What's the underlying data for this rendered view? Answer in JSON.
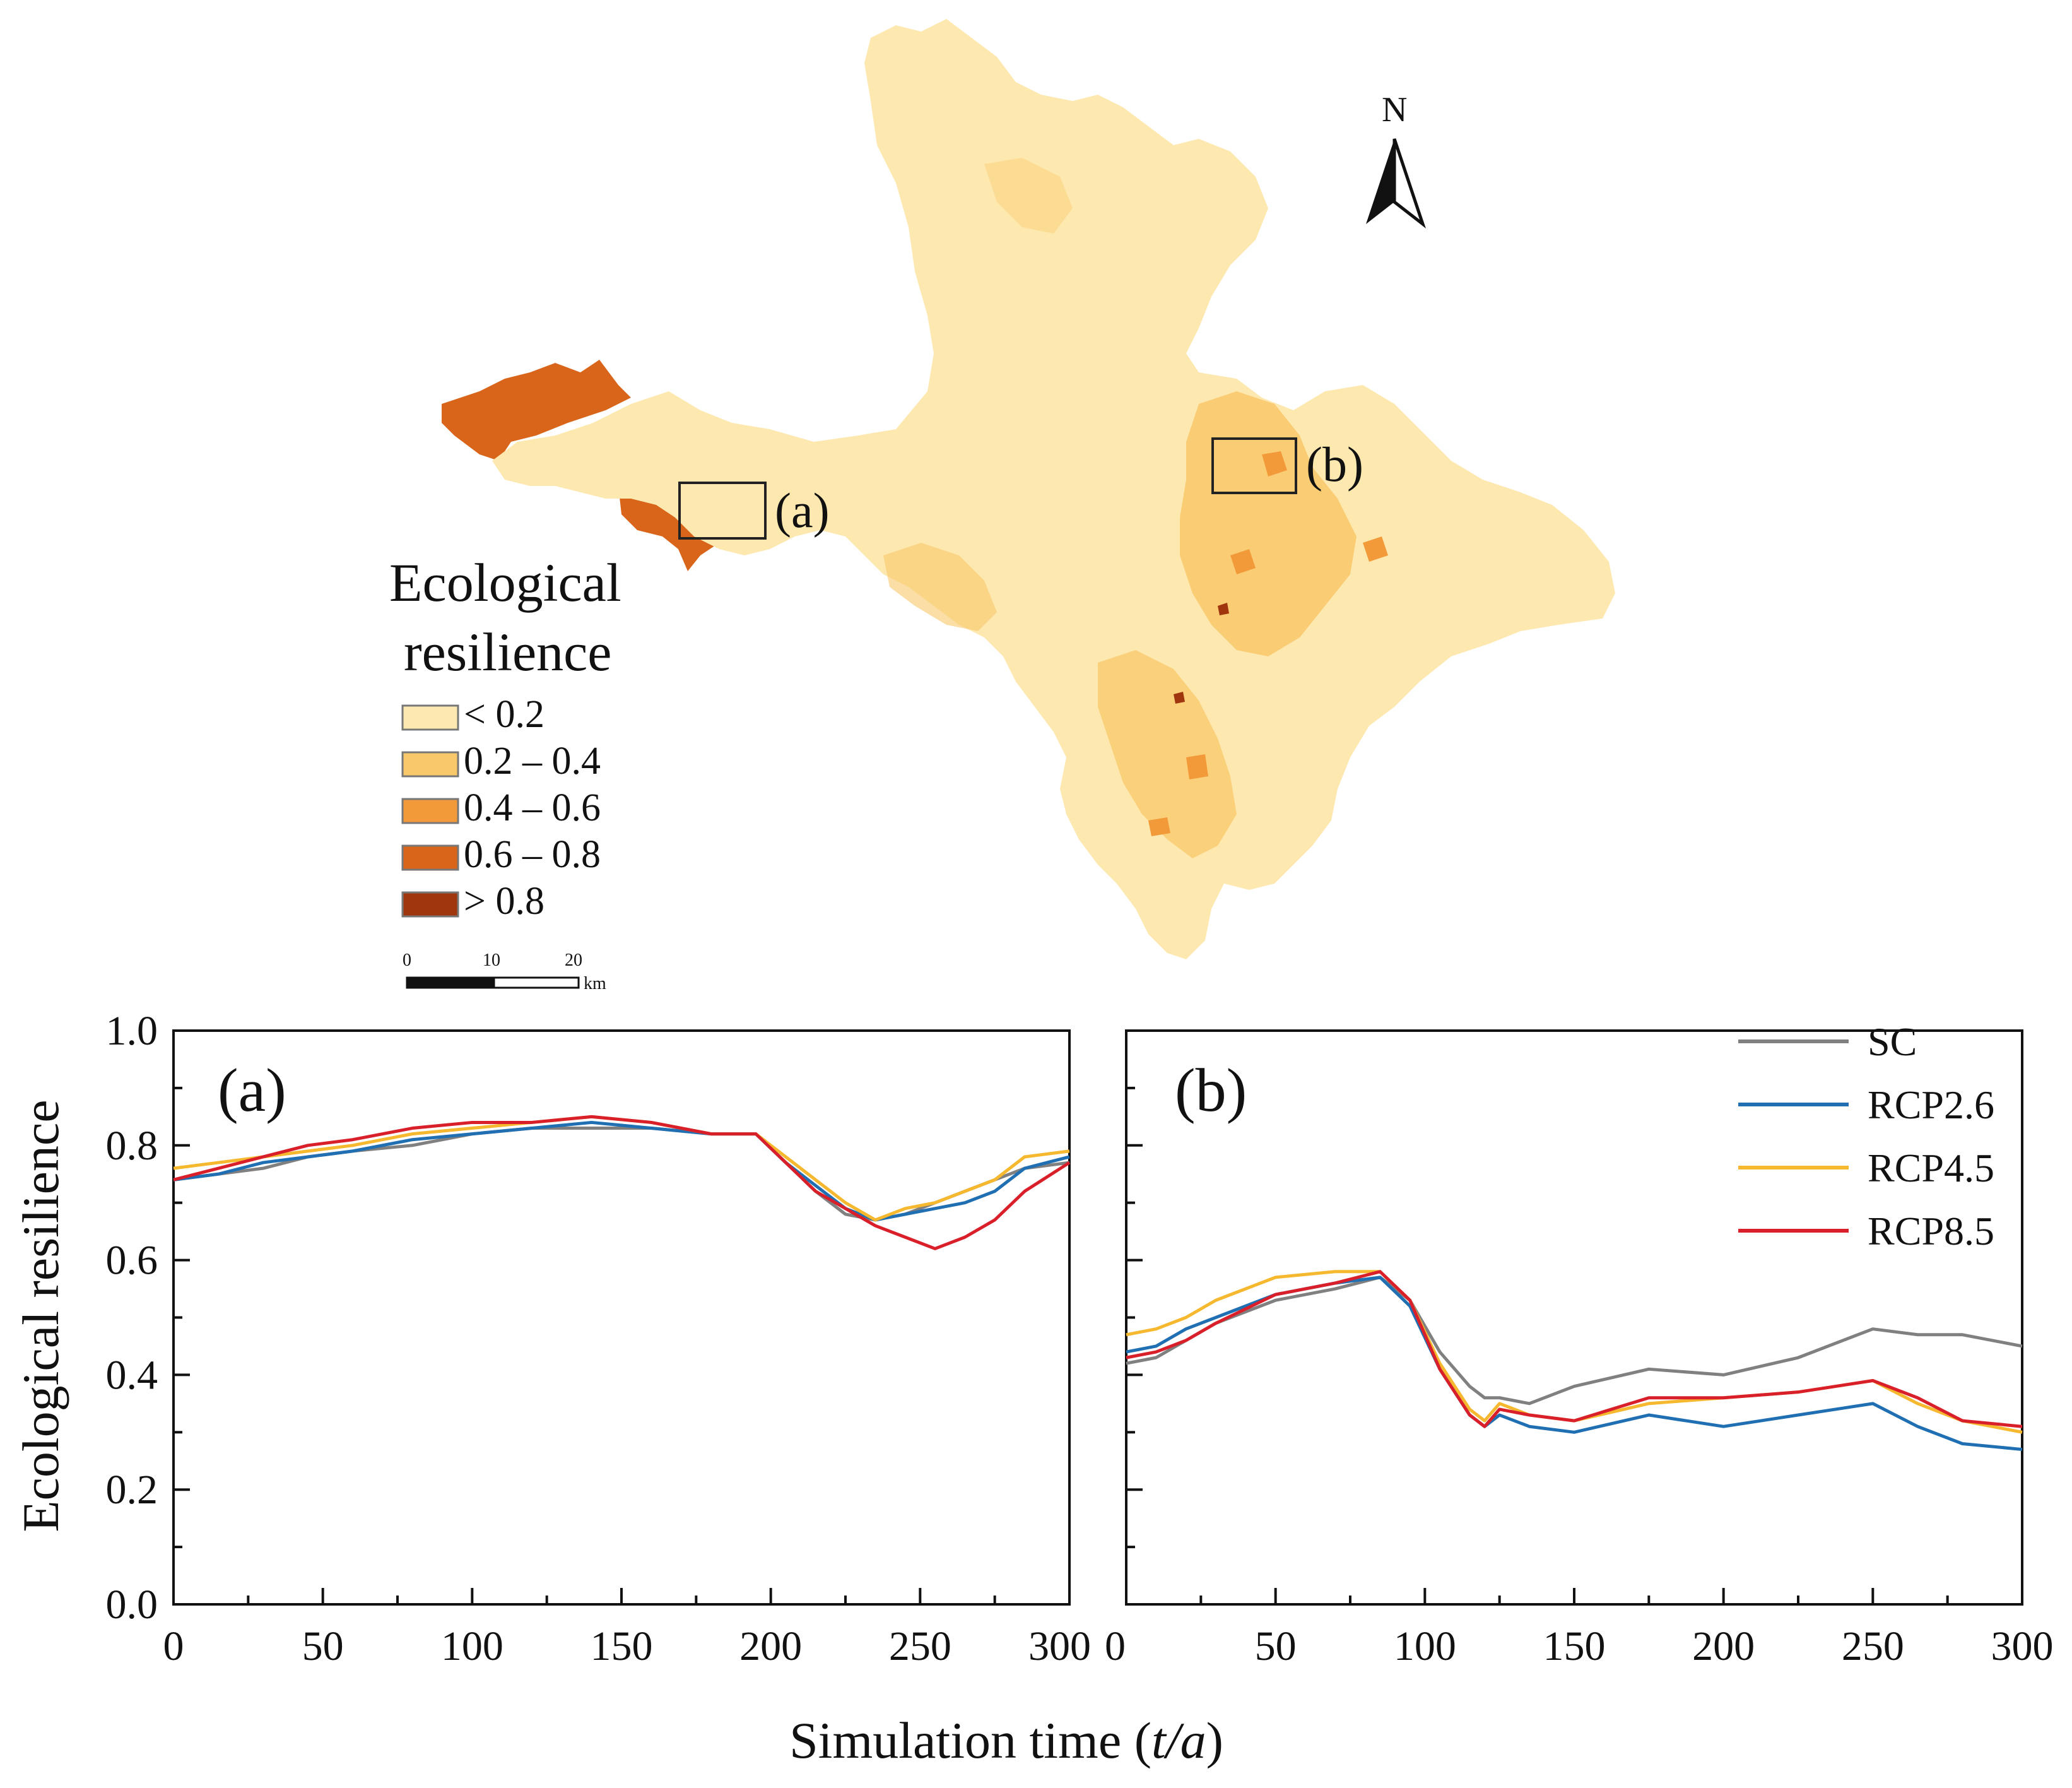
{
  "map": {
    "legend": {
      "title_line1": "Ecological",
      "title_line2": "resilience",
      "classes": [
        {
          "label": "< 0.2",
          "color": "#fde8b0"
        },
        {
          "label": "0.2 – 0.4",
          "color": "#f9c86a"
        },
        {
          "label": "0.4 – 0.6",
          "color": "#f29a3a"
        },
        {
          "label": "0.6 – 0.8",
          "color": "#d9651a"
        },
        {
          "label": "> 0.8",
          "color": "#a0360d"
        }
      ]
    },
    "inset_labels": {
      "a": "(a)",
      "b": "(b)"
    },
    "north_label": "N",
    "scale_bar": {
      "ticks": [
        "0",
        "10",
        "20"
      ],
      "unit": "km"
    }
  },
  "chart_data": {
    "type": "line",
    "xlabel_prefix": "Simulation time (",
    "xlabel_var": "t/a",
    "xlabel_suffix": ")",
    "ylabel": "Ecological resilience",
    "ylim": [
      0.0,
      1.0
    ],
    "xlim": [
      0,
      300
    ],
    "y_ticks": [
      "0.0",
      "0.2",
      "0.4",
      "0.6",
      "0.8",
      "1.0"
    ],
    "x_tick_labels_a": [
      "0",
      "50",
      "100",
      "150",
      "200",
      "250",
      "300"
    ],
    "x_tick_labels_b": [
      "0",
      "50",
      "100",
      "150",
      "200",
      "250",
      "300"
    ],
    "legend": [
      {
        "name": "SC",
        "color": "#808080"
      },
      {
        "name": "RCP2.6",
        "color": "#1f6fb2"
      },
      {
        "name": "RCP4.5",
        "color": "#f5b82e"
      },
      {
        "name": "RCP8.5",
        "color": "#d9202a"
      }
    ],
    "panels": [
      {
        "tag": "(a)",
        "x": [
          0,
          15,
          30,
          45,
          60,
          80,
          100,
          120,
          140,
          160,
          180,
          195,
          205,
          215,
          225,
          235,
          245,
          255,
          265,
          275,
          285,
          300
        ],
        "series": [
          {
            "name": "SC",
            "values": [
              0.74,
              0.75,
              0.76,
              0.78,
              0.79,
              0.8,
              0.82,
              0.83,
              0.83,
              0.83,
              0.82,
              0.82,
              0.77,
              0.72,
              0.68,
              0.67,
              0.68,
              0.7,
              0.72,
              0.74,
              0.76,
              0.77
            ]
          },
          {
            "name": "RCP2.6",
            "values": [
              0.74,
              0.75,
              0.77,
              0.78,
              0.79,
              0.81,
              0.82,
              0.83,
              0.84,
              0.83,
              0.82,
              0.82,
              0.77,
              0.73,
              0.69,
              0.67,
              0.68,
              0.69,
              0.7,
              0.72,
              0.76,
              0.78
            ]
          },
          {
            "name": "RCP4.5",
            "values": [
              0.76,
              0.77,
              0.78,
              0.79,
              0.8,
              0.82,
              0.83,
              0.84,
              0.85,
              0.84,
              0.82,
              0.82,
              0.78,
              0.74,
              0.7,
              0.67,
              0.69,
              0.7,
              0.72,
              0.74,
              0.78,
              0.79
            ]
          },
          {
            "name": "RCP8.5",
            "values": [
              0.74,
              0.76,
              0.78,
              0.8,
              0.81,
              0.83,
              0.84,
              0.84,
              0.85,
              0.84,
              0.82,
              0.82,
              0.77,
              0.72,
              0.69,
              0.66,
              0.64,
              0.62,
              0.64,
              0.67,
              0.72,
              0.77
            ]
          }
        ]
      },
      {
        "tag": "(b)",
        "x": [
          0,
          10,
          20,
          30,
          50,
          70,
          85,
          95,
          105,
          115,
          120,
          125,
          135,
          150,
          175,
          200,
          225,
          250,
          265,
          280,
          300
        ],
        "series": [
          {
            "name": "SC",
            "values": [
              0.42,
              0.43,
              0.46,
              0.49,
              0.53,
              0.55,
              0.57,
              0.53,
              0.44,
              0.38,
              0.36,
              0.36,
              0.35,
              0.38,
              0.41,
              0.4,
              0.43,
              0.48,
              0.47,
              0.47,
              0.45
            ]
          },
          {
            "name": "RCP2.6",
            "values": [
              0.44,
              0.45,
              0.48,
              0.5,
              0.54,
              0.56,
              0.57,
              0.52,
              0.41,
              0.33,
              0.31,
              0.33,
              0.31,
              0.3,
              0.33,
              0.31,
              0.33,
              0.35,
              0.31,
              0.28,
              0.27
            ]
          },
          {
            "name": "RCP4.5",
            "values": [
              0.47,
              0.48,
              0.5,
              0.53,
              0.57,
              0.58,
              0.58,
              0.53,
              0.42,
              0.34,
              0.32,
              0.35,
              0.33,
              0.32,
              0.35,
              0.36,
              0.37,
              0.39,
              0.35,
              0.32,
              0.3
            ]
          },
          {
            "name": "RCP8.5",
            "values": [
              0.43,
              0.44,
              0.46,
              0.49,
              0.54,
              0.56,
              0.58,
              0.53,
              0.41,
              0.33,
              0.31,
              0.34,
              0.33,
              0.32,
              0.36,
              0.36,
              0.37,
              0.39,
              0.36,
              0.32,
              0.31
            ]
          }
        ]
      }
    ]
  }
}
